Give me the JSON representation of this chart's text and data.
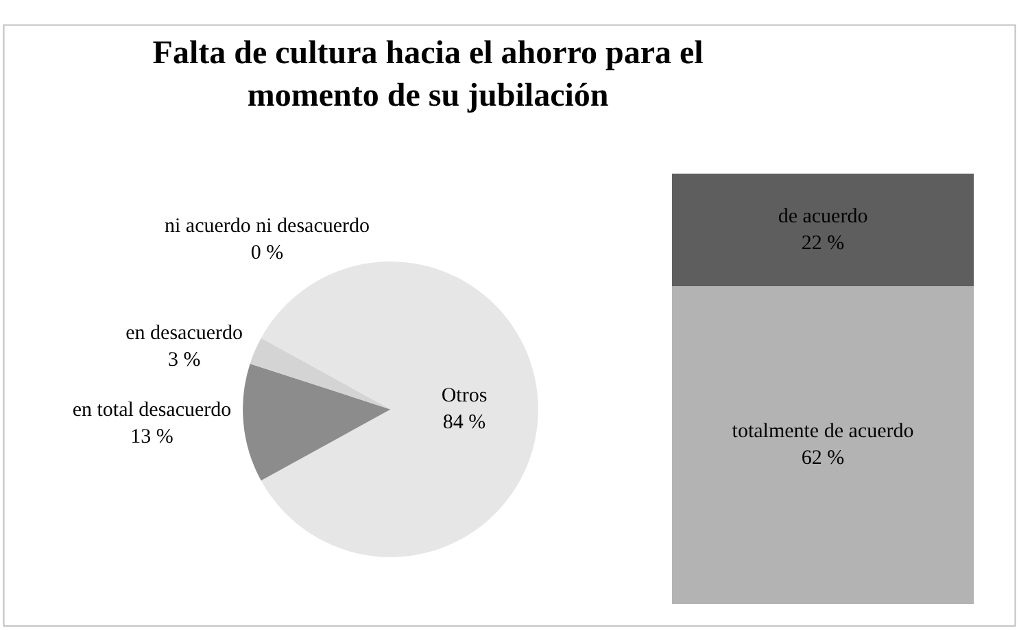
{
  "chart_data": [
    {
      "type": "pie",
      "title": "Falta de cultura hacia el ahorro para el momento de su jubilación",
      "categories": [
        "Otros",
        "en total desacuerdo",
        "en desacuerdo",
        "ni acuerdo ni desacuerdo"
      ],
      "values": [
        84,
        13,
        3,
        0
      ],
      "value_labels": [
        "84 %",
        "13 %",
        "3 %",
        "0 %"
      ],
      "colors": [
        "#e6e6e6",
        "#8c8c8c",
        "#d4d4d4",
        "#bfbfbf"
      ],
      "legend": false
    },
    {
      "type": "bar",
      "stacked": true,
      "categories": [
        null
      ],
      "tick_labels": false,
      "legend": false,
      "series": [
        {
          "name": "totalmente de acuerdo",
          "color": "#b3b3b3",
          "values": [
            62
          ],
          "value_labels": [
            "62 %"
          ]
        },
        {
          "name": "de acuerdo",
          "color": "#5e5e5e",
          "values": [
            22
          ],
          "value_labels": [
            "22 %"
          ]
        }
      ]
    }
  ]
}
